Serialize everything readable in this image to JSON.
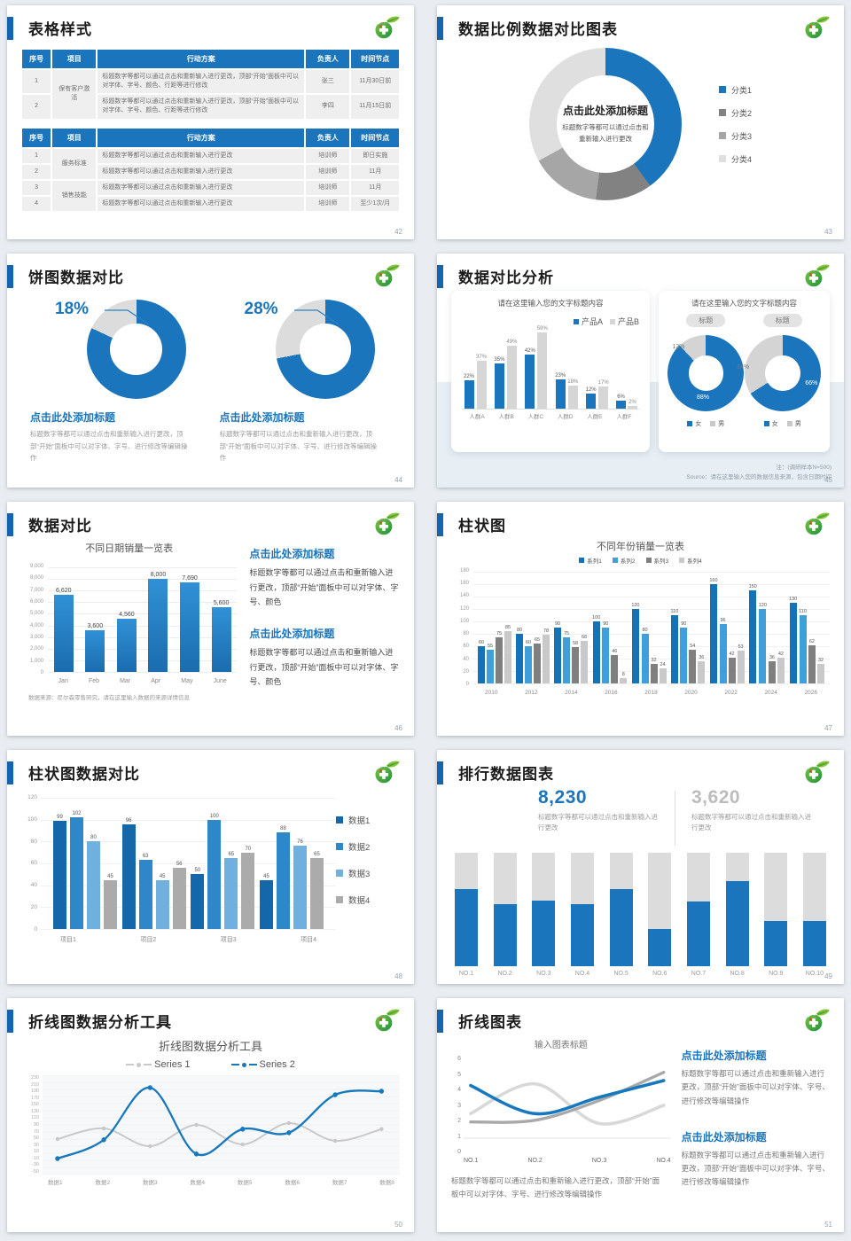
{
  "brand": {
    "logo": "green-medical-leaf-logo",
    "accent_color": "#1b75bc"
  },
  "common": {
    "click_heading": "点击此处添加标题"
  },
  "slides": {
    "s42": {
      "title": "表格样式",
      "page_no": "42",
      "headers": [
        "序号",
        "项目",
        "行动方案",
        "负责人",
        "时间节点"
      ],
      "table1": [
        {
          "no": "1",
          "project": "保有客户激活",
          "span": 2,
          "plan": "标题数字等都可以通过点击和重新输入进行更改，顶部“开始”面板中可以对字体、字号、颜色、行距等进行修改",
          "owner": "张三",
          "time": "11月30日前"
        },
        {
          "no": "2",
          "plan": "标题数字等都可以通过点击和重新输入进行更改，顶部“开始”面板中可以对字体、字号、颜色、行距等进行修改",
          "owner": "李四",
          "time": "11月15日前"
        }
      ],
      "table2": [
        {
          "no": "1",
          "project": "服务标准",
          "span": 2,
          "plan": "标题数字等都可以通过点击和重新输入进行更改",
          "owner": "培训师",
          "time": "即日实施"
        },
        {
          "no": "2",
          "plan": "标题数字等都可以通过点击和重新输入进行更改",
          "owner": "培训师",
          "time": "11月"
        },
        {
          "no": "3",
          "project": "销售技能",
          "span": 2,
          "plan": "标题数字等都可以通过点击和重新输入进行更改",
          "owner": "培训师",
          "time": "11月"
        },
        {
          "no": "4",
          "plan": "标题数字等都可以通过点击和重新输入进行更改",
          "owner": "培训师",
          "time": "至少1次/月"
        }
      ]
    },
    "s43": {
      "title": "数据比例数据对比图表",
      "page_no": "43",
      "center_heading": "点击此处添加标题",
      "center_text": "标题数字等都可以通过点击和重新输入进行更改",
      "segments": [
        {
          "label": "分类1",
          "value": 40,
          "color": "#1b75bc"
        },
        {
          "label": "分类2",
          "value": 12,
          "color": "#828282"
        },
        {
          "label": "分类3",
          "value": 15,
          "color": "#a6a6a6"
        },
        {
          "label": "分类4",
          "value": 33,
          "color": "#dfdfdf"
        }
      ]
    },
    "s44": {
      "title": "饼图数据对比",
      "page_no": "44",
      "items": [
        {
          "pct": "18%",
          "value": 18,
          "heading": "点击此处添加标题",
          "text": "标题数字等都可以通过点击和重新输入进行更改，顶部“开始”面板中可以对字体、字号、进行修改等编辑操作"
        },
        {
          "pct": "28%",
          "value": 28,
          "heading": "点击此处添加标题",
          "text": "标题数字等都可以通过点击和重新输入进行更改，顶部“开始”面板中可以对字体、字号、进行修改等编辑操作"
        }
      ],
      "pie_blue": "#1b75bc",
      "pie_gray": "#dcdcdc"
    },
    "s45": {
      "title": "数据对比分析",
      "page_no": "45",
      "left_card": {
        "card_title": "请在这里输入您的文字标题内容",
        "legend": [
          "产品A",
          "产品B"
        ],
        "categories": [
          "人群A",
          "人群B",
          "人群C",
          "人群D",
          "人群E",
          "人群F"
        ],
        "series_a": [
          22,
          35,
          42,
          23,
          12,
          6
        ],
        "series_b": [
          37,
          49,
          59,
          18,
          17,
          2
        ],
        "labels_a": [
          "22%",
          "35%",
          "42%",
          "23%",
          "12%",
          "6%"
        ],
        "labels_b": [
          "37%",
          "49%",
          "59%",
          "18%",
          "17%",
          "2%"
        ]
      },
      "right_card": {
        "card_title": "请在这里输入您的文字标题内容",
        "donuts": [
          {
            "badge": "标题",
            "gray": 12,
            "gray_label": "12%",
            "blue_label": "88%",
            "legend": [
              "女",
              "男"
            ]
          },
          {
            "badge": "标题",
            "gray": 34,
            "gray_label": "34%",
            "blue_label": "66%",
            "legend": [
              "女",
              "男"
            ]
          }
        ]
      },
      "note1": "注：(调研样本N=500)",
      "note2": "Source：请在这里输入您的数据信息来源，包含日期时间"
    },
    "s46": {
      "title": "数据对比",
      "page_no": "46",
      "chart_title": "不同日期销量一览表",
      "yticks": [
        "9,000",
        "8,000",
        "7,000",
        "6,000",
        "5,000",
        "4,000",
        "3,000",
        "2,000",
        "1,000",
        "0"
      ],
      "ymax": 9000,
      "categories": [
        "Jan",
        "Feb",
        "Mar",
        "Apr",
        "May",
        "June"
      ],
      "values": [
        6620,
        3600,
        4560,
        8000,
        7690,
        5600
      ],
      "labels": [
        "6,620",
        "3,600",
        "4,560",
        "8,000",
        "7,690",
        "5,600"
      ],
      "source": "数据来源：尼尔森零售研究，请在这里输入数据的来源详情信息",
      "blocks": [
        {
          "heading": "点击此处添加标题",
          "text": "标题数字等都可以通过点击和重新输入进行更改，顶部“开始”面板中可以对字体、字号、颜色"
        },
        {
          "heading": "点击此处添加标题",
          "text": "标题数字等都可以通过点击和重新输入进行更改，顶部“开始”面板中可以对字体、字号、颜色"
        }
      ]
    },
    "s47": {
      "title": "柱状图",
      "page_no": "47",
      "chart_title": "不同年份销量一览表",
      "legend": [
        "系列1",
        "系列2",
        "系列3",
        "系列4"
      ],
      "colors": [
        "#1472b7",
        "#3f9fdb",
        "#7f7f7f",
        "#c9c9c9"
      ],
      "yticks": [
        "180",
        "160",
        "140",
        "120",
        "100",
        "80",
        "60",
        "40",
        "20",
        "0"
      ],
      "ymax": 180,
      "categories": [
        "2010",
        "2012",
        "2014",
        "2016",
        "2018",
        "2020",
        "2022",
        "2024",
        "2026"
      ],
      "series": [
        {
          "name": "系列1",
          "values": [
            60,
            80,
            90,
            100,
            120,
            110,
            160,
            150,
            130
          ]
        },
        {
          "name": "系列2",
          "values": [
            55,
            60,
            75,
            90,
            80,
            90,
            96,
            120,
            110
          ]
        },
        {
          "name": "系列3",
          "values": [
            75,
            65,
            58,
            46,
            32,
            54,
            42,
            36,
            62
          ]
        },
        {
          "name": "系列4",
          "values": [
            85,
            78,
            68,
            8,
            24,
            36,
            53,
            42,
            32
          ]
        }
      ]
    },
    "s48": {
      "title": "柱状图数据对比",
      "page_no": "48",
      "legend": [
        "数据1",
        "数据2",
        "数据3",
        "数据4"
      ],
      "colors": [
        "#1467a8",
        "#2e87c8",
        "#6fb0de",
        "#ababab"
      ],
      "yticks": [
        "120",
        "100",
        "80",
        "60",
        "40",
        "20",
        "0"
      ],
      "ymax": 120,
      "categories": [
        "项目1",
        "项目2",
        "项目3",
        "项目4"
      ],
      "groups": [
        [
          99,
          102,
          80,
          45
        ],
        [
          96,
          63,
          45,
          56
        ],
        [
          50,
          100,
          65,
          70
        ],
        [
          45,
          88,
          76,
          65
        ]
      ]
    },
    "s49": {
      "title": "排行数据图表",
      "page_no": "49",
      "num1": "8,230",
      "num2": "3,620",
      "cap1": "标题数字等都可以通过点击和重新输入进行更改",
      "cap2": "标题数字等都可以通过点击和重新输入进行更改",
      "labels": [
        "NO.1",
        "NO.2",
        "NO.3",
        "NO.4",
        "NO.5",
        "NO.6",
        "NO.7",
        "NO.8",
        "NO.9",
        "NO.10"
      ],
      "fractions": [
        0.68,
        0.55,
        0.58,
        0.55,
        0.68,
        0.33,
        0.57,
        0.75,
        0.4,
        0.4
      ]
    },
    "s50": {
      "title": "折线图数据分析工具",
      "page_no": "50",
      "chart_title": "折线图数据分析工具",
      "legend": [
        "Series 1",
        "Series 2"
      ],
      "yticks": [
        "230",
        "210",
        "190",
        "170",
        "150",
        "130",
        "110",
        "90",
        "70",
        "50",
        "30",
        "10",
        "-10",
        "-30",
        "-50"
      ],
      "ymin": -50,
      "ymax": 230,
      "categories": [
        "数据1",
        "数据2",
        "数据3",
        "数据4",
        "数据5",
        "数据6",
        "数据7",
        "数据8"
      ],
      "series1": [
        50,
        80,
        30,
        90,
        35,
        95,
        45,
        78
      ],
      "series2": [
        -5,
        48,
        195,
        8,
        78,
        68,
        175,
        185
      ],
      "gray": "#c9c9c9",
      "blue": "#1878be"
    },
    "s51": {
      "title": "折线图表",
      "page_no": "51",
      "chart_title": "输入图表标题",
      "yticks": [
        "6",
        "5",
        "4",
        "3",
        "2",
        "1",
        "0"
      ],
      "ymax": 6,
      "categories": [
        "NO.1",
        "NO.2",
        "NO.3",
        "NO.4"
      ],
      "line_blue": [
        4.2,
        2.5,
        3.5,
        4.5
      ],
      "line_dark": [
        2,
        2.1,
        3.3,
        5
      ],
      "line_light": [
        2.5,
        4.3,
        1.9,
        3
      ],
      "caption": "标题数字等都可以通过点击和重新输入进行更改，顶部“开始”面板中可以对字体、字号、进行修改等编辑操作",
      "blocks": [
        {
          "heading": "点击此处添加标题",
          "text": "标题数字等都可以通过点击和重新输入进行更改，顶部“开始”面板中可以对字体、字号、进行修改等编辑操作"
        },
        {
          "heading": "点击此处添加标题",
          "text": "标题数字等都可以通过点击和重新输入进行更改，顶部“开始”面板中可以对字体、字号、进行修改等编辑操作"
        }
      ]
    }
  }
}
